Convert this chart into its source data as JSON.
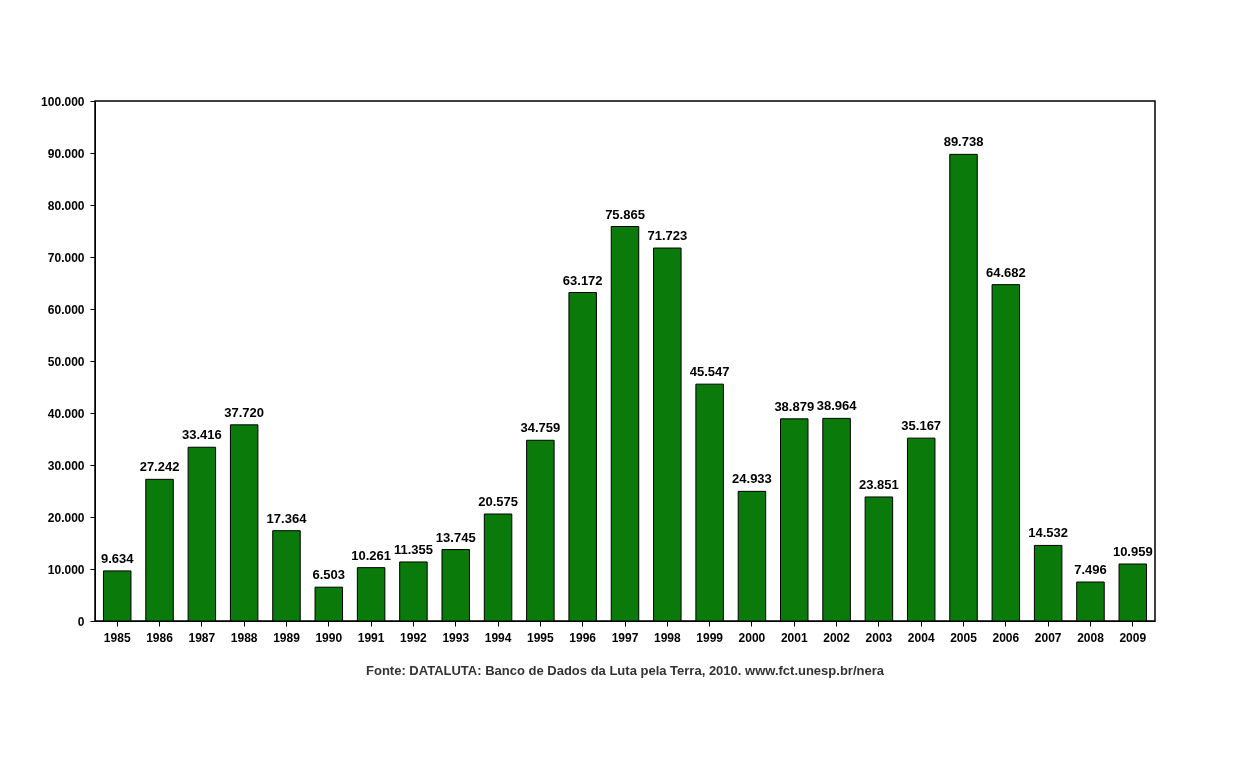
{
  "chart_data": {
    "type": "bar",
    "categories": [
      "1985",
      "1986",
      "1987",
      "1988",
      "1989",
      "1990",
      "1991",
      "1992",
      "1993",
      "1994",
      "1995",
      "1996",
      "1997",
      "1998",
      "1999",
      "2000",
      "2001",
      "2002",
      "2003",
      "2004",
      "2005",
      "2006",
      "2007",
      "2008",
      "2009"
    ],
    "values": [
      9634,
      27242,
      33416,
      37720,
      17364,
      6503,
      10261,
      11355,
      13745,
      20575,
      34759,
      63172,
      75865,
      71723,
      45547,
      24933,
      38879,
      38964,
      23851,
      35167,
      89738,
      64682,
      14532,
      7496,
      10959
    ],
    "value_labels": [
      "9.634",
      "27.242",
      "33.416",
      "37.720",
      "17.364",
      "6.503",
      "10.261",
      "11.355",
      "13.745",
      "20.575",
      "34.759",
      "63.172",
      "75.865",
      "71.723",
      "45.547",
      "24.933",
      "38.879",
      "38.964",
      "23.851",
      "35.167",
      "89.738",
      "64.682",
      "14.532",
      "7.496",
      "10.959"
    ],
    "color": "#0a7a0a",
    "ylim": [
      0,
      100000
    ],
    "yticks": [
      0,
      {
        "value": 10000,
        "label": "10.000"
      },
      {
        "value": 20000,
        "label": "20.000"
      },
      {
        "value": 30000,
        "label": "30.000"
      },
      {
        "value": 40000,
        "label": "40.000"
      },
      {
        "value": 50000,
        "label": "50.000"
      },
      {
        "value": 60000,
        "label": "60.000"
      },
      {
        "value": 70000,
        "label": "70.000"
      },
      {
        "value": 80000,
        "label": "80.000"
      },
      {
        "value": 90000,
        "label": "90.000"
      },
      {
        "value": 100000,
        "label": "100.000"
      }
    ],
    "grid": false,
    "annotations": [
      "Fonte: DATALUTA: Banco de Dados da Luta pela Terra, 2010. www.fct.unesp.br/nera"
    ]
  }
}
